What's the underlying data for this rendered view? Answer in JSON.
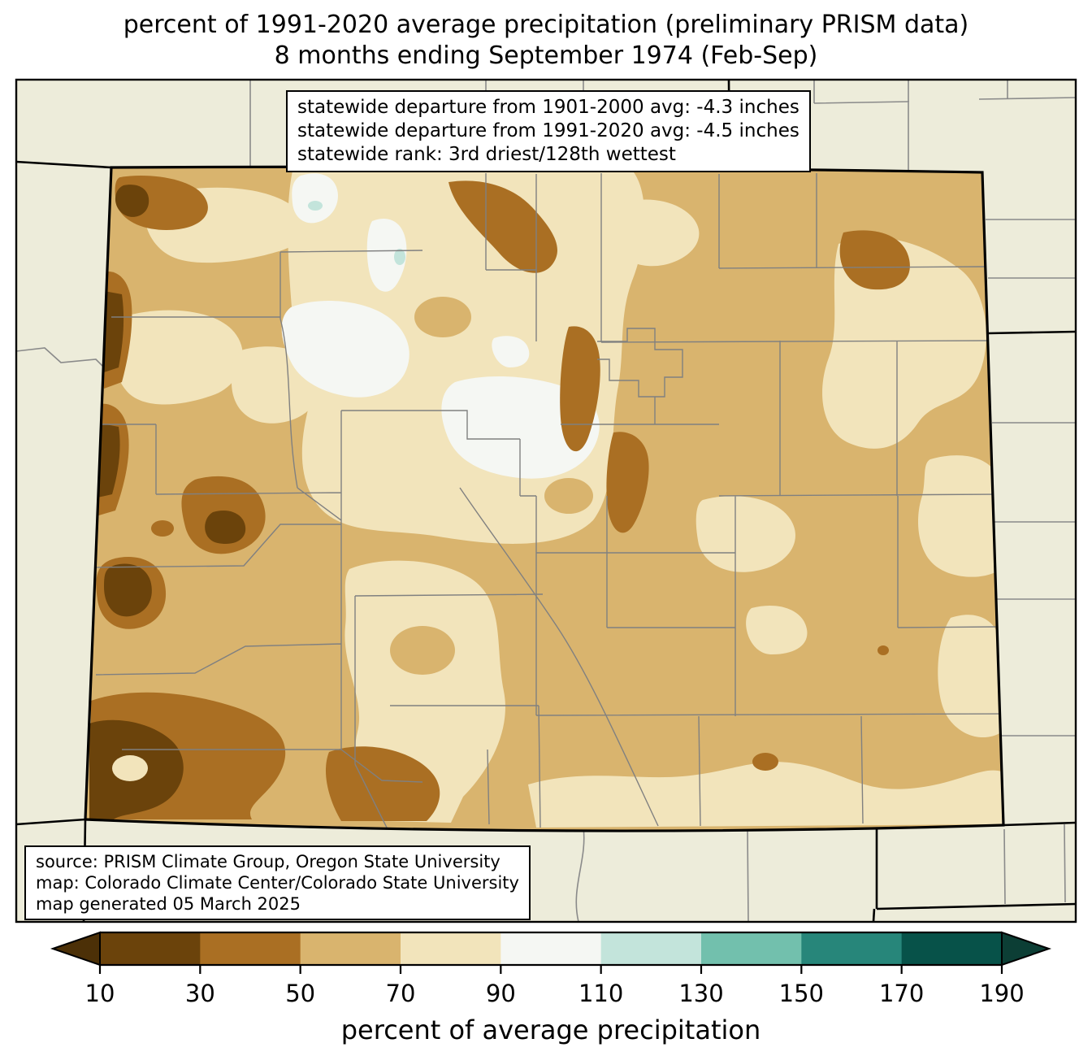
{
  "title": {
    "line1": "percent of 1991-2020 average precipitation (preliminary PRISM data)",
    "line2": "8 months ending September 1974 (Feb-Sep)"
  },
  "stats_box": {
    "lines": [
      "statewide departure from 1901-2000 avg: -4.3 inches",
      "statewide departure from 1991-2020 avg: -4.5 inches",
      "statewide rank: 3rd driest/128th wettest"
    ]
  },
  "source_box": {
    "lines": [
      "source: PRISM Climate Group, Oregon State University",
      "map: Colorado Climate Center/Colorado State University",
      "map generated 05 March 2025"
    ]
  },
  "colorbar": {
    "label": "percent of average precipitation",
    "tick_labels": [
      "10",
      "30",
      "50",
      "70",
      "90",
      "110",
      "130",
      "150",
      "170",
      "190"
    ],
    "segment_colors": [
      "#6b430b",
      "#aa6f23",
      "#d9b46e",
      "#f2e4bb",
      "#f5f7f3",
      "#c3e4db",
      "#72c0ad",
      "#27867a",
      "#075249"
    ],
    "arrow_low_color": "#4c3007",
    "arrow_high_color": "#0c3e35"
  },
  "palette": {
    "outside_state_background": "#edecda",
    "pct_under_10": "#4c3007",
    "pct_10_30": "#6b430b",
    "pct_30_50": "#aa6f23",
    "pct_50_70": "#d9b46e",
    "pct_70_90": "#f2e4bb",
    "pct_90_110": "#f5f7f3",
    "pct_110_130": "#c3e4db",
    "pct_130_150": "#72c0ad",
    "pct_150_170": "#27867a",
    "pct_170_190": "#075249",
    "pct_over_190": "#0c3e35",
    "county_line": "#808080",
    "state_border": "#000000"
  }
}
